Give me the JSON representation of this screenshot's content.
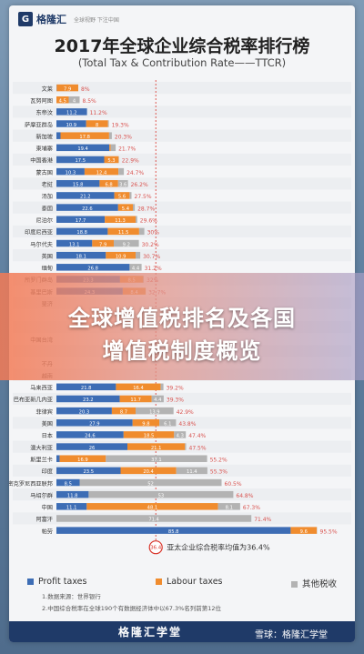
{
  "header": {
    "logo_mark": "G",
    "brand": "格隆汇",
    "brand_sub": "全球视野 下注中国",
    "title": "2017年全球企业综合税率排行榜",
    "subtitle": "(Total Tax & Contribution Rate——TTCR)"
  },
  "overlay": {
    "line1": "全球增值税排名及各国",
    "line2": "增值税制度概览"
  },
  "colors": {
    "profit": "#3d6db5",
    "labour": "#f08c2e",
    "other": "#b3b3b3",
    "highlight": "#d9352b"
  },
  "legend": {
    "profit": "Profit taxes",
    "labour": "Labour taxes",
    "other": "其他税收"
  },
  "avg": {
    "marker": "36.4",
    "label": "亚太企业综合税率均值为36.4%"
  },
  "notes": {
    "line1": "1.数据来源：世界银行",
    "line2": "2.中国综合税率在全球190个有数据经济体中以67.3%名列前第12位"
  },
  "footer": {
    "brand": "格隆汇学堂",
    "watermark": "雪球：格隆汇学堂"
  },
  "chart_data": {
    "type": "bar",
    "stacked": true,
    "orientation": "horizontal",
    "xlim": [
      0,
      100
    ],
    "rows": [
      {
        "name": "文莱",
        "p": 0.1,
        "l": 7.9,
        "o": 0,
        "total": "8%"
      },
      {
        "name": "瓦努阿图",
        "p": 0,
        "l": 4.5,
        "o": 4,
        "total": "8.5%"
      },
      {
        "name": "东帝汶",
        "p": 11.2,
        "l": 0,
        "o": 0,
        "total": "11.2%"
      },
      {
        "name": "萨摩亚群岛",
        "p": 10.9,
        "l": 8,
        "o": 0.3,
        "total": "19.3%"
      },
      {
        "name": "新加坡",
        "p": 1.5,
        "l": 17.8,
        "o": 1,
        "total": "20.3%"
      },
      {
        "name": "柬埔寨",
        "p": 19.4,
        "l": 0.5,
        "o": 1.8,
        "total": "21.7%"
      },
      {
        "name": "中国香港",
        "p": 17.5,
        "l": 5.3,
        "o": 0.1,
        "total": "22.9%"
      },
      {
        "name": "蒙古国",
        "p": 10.3,
        "l": 12.4,
        "o": 2,
        "total": "24.7%"
      },
      {
        "name": "老挝",
        "p": 15.8,
        "l": 6.8,
        "o": 3.6,
        "total": "26.2%"
      },
      {
        "name": "汤加",
        "p": 21.2,
        "l": 5.6,
        "o": 0.7,
        "total": "27.5%"
      },
      {
        "name": "泰国",
        "p": 22.6,
        "l": 5.4,
        "o": 0.7,
        "total": "28.7%"
      },
      {
        "name": "尼泊尔",
        "p": 17.7,
        "l": 11.3,
        "o": 0.6,
        "total": "29.6%"
      },
      {
        "name": "印度尼西亚",
        "p": 18.8,
        "l": 11.5,
        "o": 1.9,
        "total": "30%"
      },
      {
        "name": "马尔代夫",
        "p": 13.1,
        "l": 7.9,
        "o": 9.2,
        "total": "30.2%"
      },
      {
        "name": "英国",
        "p": 18.1,
        "l": 10.9,
        "o": 1.7,
        "total": "30.7%"
      },
      {
        "name": "缅甸",
        "p": 26.8,
        "l": 0,
        "o": 4.4,
        "total": "31.2%"
      },
      {
        "name": "所罗门群岛",
        "p": 23.3,
        "l": 8.5,
        "o": 0.2,
        "total": "32%"
      },
      {
        "name": "基里巴斯",
        "p": 24.3,
        "l": 8.4,
        "o": 0,
        "total": "32.7%"
      },
      {
        "name": "斐济",
        "p": 0,
        "l": 0,
        "o": 0,
        "total": ""
      },
      {
        "name": "",
        "p": 0,
        "l": 0,
        "o": 0,
        "total": ""
      },
      {
        "name": "",
        "p": 0,
        "l": 0,
        "o": 0,
        "total": ""
      },
      {
        "name": "中国台湾",
        "p": 0,
        "l": 0,
        "o": 0,
        "total": ""
      },
      {
        "name": "",
        "p": 0,
        "l": 0,
        "o": 0,
        "total": ""
      },
      {
        "name": "不丹",
        "p": 0,
        "l": 0,
        "o": 0,
        "total": ""
      },
      {
        "name": "越南",
        "p": 0,
        "l": 0,
        "o": 0,
        "total": ""
      },
      {
        "name": "马来西亚",
        "p": 21.8,
        "l": 16.4,
        "o": 1,
        "total": "39.2%"
      },
      {
        "name": "巴布亚新几内亚",
        "p": 23.2,
        "l": 11.7,
        "o": 4.4,
        "total": "39.3%"
      },
      {
        "name": "菲律宾",
        "p": 20.3,
        "l": 8.7,
        "o": 13.9,
        "total": "42.9%"
      },
      {
        "name": "美国",
        "p": 27.9,
        "l": 9.8,
        "o": 6.1,
        "total": "43.8%"
      },
      {
        "name": "日本",
        "p": 24.6,
        "l": 18.5,
        "o": 4.3,
        "total": "47.4%"
      },
      {
        "name": "澳大利亚",
        "p": 26,
        "l": 21.1,
        "o": 0.4,
        "total": "47.5%"
      },
      {
        "name": "斯里兰卡",
        "p": 1.2,
        "l": 16.9,
        "o": 37.1,
        "total": "55.2%"
      },
      {
        "name": "印度",
        "p": 23.5,
        "l": 20.4,
        "o": 11.4,
        "total": "55.3%"
      },
      {
        "name": "密克罗尼西亚联邦",
        "p": 8.5,
        "l": 0,
        "o": 52,
        "total": "60.5%"
      },
      {
        "name": "马绍尔群",
        "p": 11.8,
        "l": 0,
        "o": 53,
        "total": "64.8%"
      },
      {
        "name": "中国",
        "p": 11.1,
        "l": 48.1,
        "o": 8.1,
        "total": "67.3%"
      },
      {
        "name": "阿富汗",
        "p": 0,
        "l": 0,
        "o": 71.4,
        "total": "71.4%"
      },
      {
        "name": "帕劳",
        "p": 85.8,
        "l": 9.6,
        "o": 0.1,
        "total": "95.5%"
      }
    ]
  }
}
